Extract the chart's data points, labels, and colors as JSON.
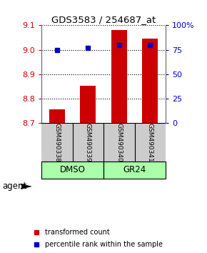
{
  "title": "GDS3583 / 254687_at",
  "samples": [
    "GSM490338",
    "GSM490339",
    "GSM490340",
    "GSM490341"
  ],
  "transformed_counts": [
    8.757,
    8.853,
    9.082,
    9.047
  ],
  "percentile_ranks": [
    75,
    77,
    80,
    80
  ],
  "ylim_left": [
    8.7,
    9.1
  ],
  "ylim_right": [
    0,
    100
  ],
  "yticks_left": [
    8.7,
    8.8,
    8.9,
    9.0,
    9.1
  ],
  "yticks_right": [
    0,
    25,
    50,
    75,
    100
  ],
  "ytick_right_labels": [
    "0",
    "25",
    "50",
    "75",
    "100%"
  ],
  "bar_color": "#cc0000",
  "dot_color": "#0000cc",
  "sample_box_color": "#cccccc",
  "group_spans": [
    {
      "label": "DMSO",
      "start": 0,
      "end": 1,
      "color": "#aaffaa"
    },
    {
      "label": "GR24",
      "start": 2,
      "end": 3,
      "color": "#aaffaa"
    }
  ],
  "agent_label": "agent",
  "legend_bar_label": "transformed count",
  "legend_dot_label": "percentile rank within the sample",
  "left_tick_color": "#cc0000",
  "right_tick_color": "#0000cc",
  "bar_width": 0.5
}
